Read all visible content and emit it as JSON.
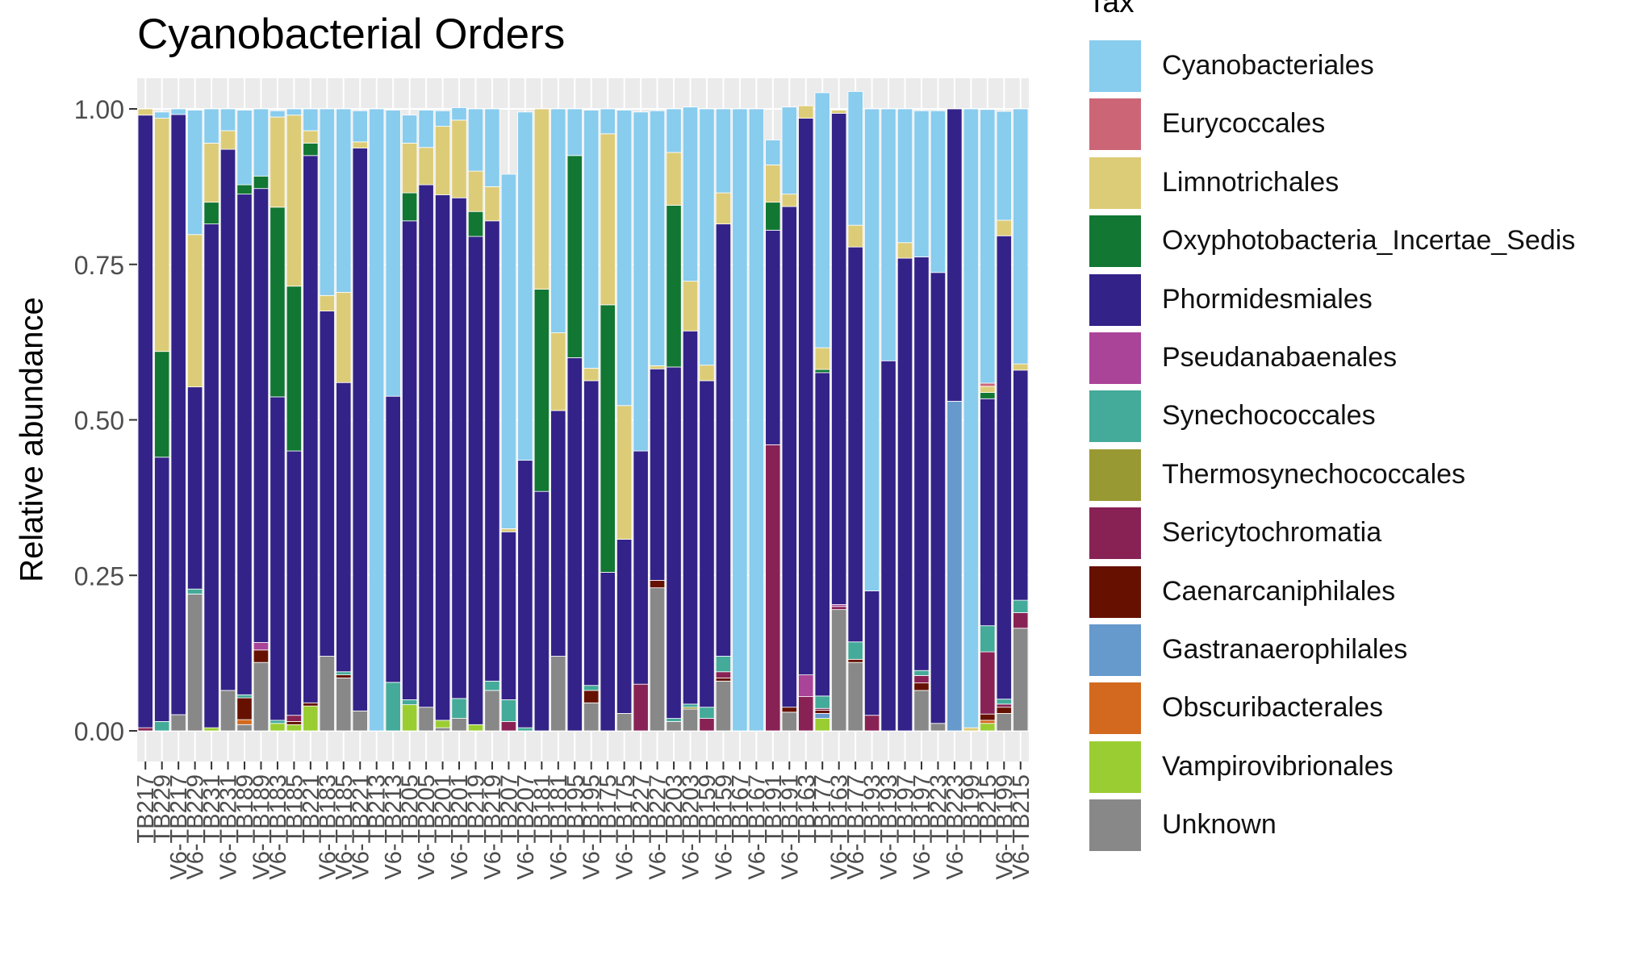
{
  "chart_data": {
    "type": "bar",
    "stacked": true,
    "title": "Cyanobacterial Orders",
    "xlabel": "",
    "ylabel": "Relative abundance",
    "ylim": [
      0,
      1
    ],
    "y_ticks": [
      "0.00",
      "0.25",
      "0.50",
      "0.75",
      "1.00"
    ],
    "legend": {
      "title": "Tax",
      "position": "right"
    },
    "grid": true,
    "categories": [
      "TB217",
      "TB229",
      "V6-TB217",
      "V6-TB229",
      "TB231",
      "V6-TB231",
      "TB189",
      "V6-TB189",
      "V6-TB183",
      "TB185",
      "TB221",
      "V6-TB183",
      "V6-TB185",
      "V6-TB221",
      "TB213",
      "V6-TB213",
      "TB205",
      "V6-TB205",
      "TB201",
      "V6-TB201",
      "TB219",
      "V6-TB219",
      "TB207",
      "V6-TB207",
      "TB181",
      "V6-TB181",
      "TB195",
      "V6-TB195",
      "TB175",
      "V6-TB175",
      "TB227",
      "V6-TB227",
      "TB203",
      "V6-TB203",
      "TB159",
      "V6-TB159",
      "TB167",
      "V6-TB167",
      "TB191",
      "V6-TB191",
      "TB163",
      "TB177",
      "V6-TB163",
      "V6-TB177",
      "TB193",
      "V6-TB193",
      "TB197",
      "V6-TB197",
      "TB223",
      "V6-TB223",
      "TB199",
      "TB215",
      "V6-TB199",
      "V6-TB215"
    ],
    "series": [
      {
        "name": "Unknown",
        "color": "#888888",
        "values": [
          0,
          0,
          0.026,
          0.22,
          0,
          0.065,
          0.01,
          0.11,
          0,
          0,
          0,
          0.12,
          0.085,
          0.032,
          0,
          0,
          0,
          0.038,
          0.005,
          0.02,
          0,
          0.065,
          0,
          0,
          0,
          0.12,
          0,
          0.045,
          0,
          0.028,
          0,
          0.23,
          0.015,
          0.035,
          0,
          0.08,
          0,
          0,
          0,
          0.03,
          0,
          0,
          0.195,
          0.11,
          0,
          0,
          0,
          0.065,
          0.012,
          0,
          0,
          0,
          0.028,
          0.165
        ]
      },
      {
        "name": "Vampirovibrionales",
        "color": "#9ACD32",
        "values": [
          0,
          0,
          0,
          0,
          0.005,
          0,
          0,
          0,
          0.012,
          0.01,
          0.04,
          0,
          0,
          0,
          0,
          0,
          0.042,
          0,
          0.012,
          0,
          0.01,
          0,
          0,
          0,
          0,
          0,
          0,
          0,
          0,
          0,
          0,
          0,
          0,
          0,
          0,
          0,
          0,
          0,
          0,
          0,
          0,
          0.02,
          0,
          0,
          0,
          0,
          0,
          0,
          0,
          0,
          0,
          0.012,
          0,
          0
        ]
      },
      {
        "name": "Obscuribacterales",
        "color": "#D2691E",
        "values": [
          0,
          0,
          0,
          0,
          0,
          0,
          0.008,
          0,
          0,
          0,
          0,
          0,
          0,
          0,
          0,
          0,
          0,
          0,
          0,
          0,
          0,
          0,
          0,
          0,
          0,
          0,
          0,
          0,
          0,
          0,
          0,
          0,
          0,
          0,
          0,
          0,
          0,
          0,
          0,
          0,
          0,
          0,
          0,
          0,
          0,
          0,
          0,
          0,
          0,
          0,
          0,
          0.005,
          0,
          0
        ]
      },
      {
        "name": "Gastranaerophilales",
        "color": "#6699CC",
        "values": [
          0,
          0,
          0,
          0,
          0,
          0,
          0,
          0,
          0,
          0,
          0,
          0,
          0,
          0,
          0,
          0,
          0,
          0,
          0,
          0,
          0,
          0,
          0,
          0,
          0,
          0,
          0,
          0,
          0,
          0,
          0,
          0,
          0,
          0,
          0,
          0,
          0,
          0,
          0,
          0,
          0,
          0.008,
          0,
          0,
          0,
          0,
          0,
          0,
          0,
          0.53,
          0,
          0,
          0,
          0
        ]
      },
      {
        "name": "Caenarcaniphilales",
        "color": "#661100",
        "values": [
          0,
          0,
          0,
          0,
          0,
          0,
          0.035,
          0.02,
          0,
          0.005,
          0.005,
          0,
          0.005,
          0,
          0,
          0,
          0,
          0,
          0,
          0,
          0,
          0,
          0,
          0,
          0,
          0,
          0,
          0.02,
          0,
          0,
          0,
          0.012,
          0,
          0,
          0,
          0.005,
          0,
          0,
          0,
          0.008,
          0,
          0.005,
          0,
          0.005,
          0,
          0,
          0,
          0.012,
          0,
          0,
          0,
          0.01,
          0.01,
          0
        ]
      },
      {
        "name": "Sericytochromatia",
        "color": "#882255",
        "values": [
          0.005,
          0,
          0,
          0,
          0,
          0,
          0,
          0,
          0,
          0.01,
          0,
          0,
          0,
          0,
          0,
          0,
          0,
          0,
          0,
          0,
          0,
          0,
          0.015,
          0,
          0,
          0,
          0,
          0,
          0,
          0,
          0.075,
          0,
          0,
          0,
          0.02,
          0.01,
          0,
          0,
          0.46,
          0,
          0.055,
          0.003,
          0.005,
          0,
          0.025,
          0,
          0,
          0.012,
          0,
          0,
          0,
          0.1,
          0.005,
          0.025
        ]
      },
      {
        "name": "Thermosynechococcales",
        "color": "#999933",
        "values": [
          0,
          0,
          0,
          0,
          0,
          0,
          0,
          0,
          0,
          0,
          0,
          0,
          0,
          0,
          0,
          0,
          0,
          0,
          0,
          0,
          0,
          0,
          0,
          0,
          0,
          0,
          0,
          0,
          0,
          0,
          0,
          0,
          0,
          0.003,
          0,
          0,
          0,
          0,
          0,
          0,
          0,
          0,
          0,
          0,
          0,
          0,
          0,
          0,
          0,
          0,
          0,
          0,
          0,
          0
        ]
      },
      {
        "name": "Synechococcales",
        "color": "#44AA99",
        "values": [
          0,
          0.015,
          0,
          0.008,
          0,
          0,
          0.005,
          0,
          0.005,
          0,
          0,
          0,
          0.005,
          0,
          0,
          0.078,
          0.008,
          0,
          0,
          0.032,
          0,
          0.015,
          0.035,
          0.005,
          0,
          0,
          0,
          0.008,
          0,
          0,
          0,
          0,
          0.005,
          0.005,
          0.018,
          0.025,
          0,
          0,
          0,
          0,
          0,
          0.02,
          0,
          0.028,
          0,
          0,
          0,
          0.008,
          0,
          0,
          0,
          0.042,
          0.008,
          0.02
        ]
      },
      {
        "name": "Pseudanabaenales",
        "color": "#AA4499",
        "values": [
          0,
          0,
          0,
          0,
          0,
          0,
          0,
          0.012,
          0,
          0,
          0,
          0,
          0,
          0,
          0,
          0,
          0,
          0,
          0,
          0,
          0,
          0,
          0,
          0,
          0,
          0,
          0,
          0,
          0,
          0,
          0,
          0,
          0,
          0,
          0,
          0,
          0,
          0,
          0,
          0,
          0.035,
          0,
          0.003,
          0,
          0,
          0,
          0,
          0,
          0,
          0,
          0,
          0,
          0,
          0
        ]
      },
      {
        "name": "Phormidesmiales",
        "color": "#332288",
        "values": [
          0.985,
          0.425,
          0.965,
          0.325,
          0.81,
          0.87,
          0.805,
          0.73,
          0.52,
          0.425,
          0.88,
          0.555,
          0.465,
          0.905,
          0,
          0.46,
          0.77,
          0.84,
          0.845,
          0.805,
          0.785,
          0.74,
          0.27,
          0.43,
          0.385,
          0.395,
          0.6,
          0.49,
          0.255,
          0.28,
          0.375,
          0.34,
          0.565,
          0.6,
          0.525,
          0.695,
          0,
          0,
          0.345,
          0.805,
          0.895,
          0.52,
          0.79,
          0.635,
          0.2,
          0.595,
          0.76,
          0.665,
          0.725,
          0.47,
          0,
          0.365,
          0.745,
          0.37
        ]
      },
      {
        "name": "Oxyphotobacteria_Incertae_Sedis",
        "color": "#117733",
        "values": [
          0,
          0.17,
          0,
          0,
          0.035,
          0,
          0.015,
          0.02,
          0.305,
          0.265,
          0.02,
          0,
          0,
          0,
          0,
          0,
          0.045,
          0,
          0,
          0,
          0.04,
          0,
          0,
          0,
          0.325,
          0,
          0.325,
          0,
          0.43,
          0,
          0,
          0,
          0.26,
          0,
          0,
          0,
          0,
          0,
          0.045,
          0,
          0,
          0.005,
          0,
          0,
          0,
          0,
          0,
          0,
          0,
          0,
          0,
          0.01,
          0,
          0
        ]
      },
      {
        "name": "Limnotrichales",
        "color": "#DDCC77",
        "values": [
          0.01,
          0.375,
          0,
          0.245,
          0.095,
          0.03,
          0,
          0,
          0.145,
          0.275,
          0.02,
          0.025,
          0.145,
          0.01,
          0,
          0,
          0.08,
          0.06,
          0.11,
          0.125,
          0.065,
          0.055,
          0.005,
          0,
          0.29,
          0.125,
          0,
          0.02,
          0.275,
          0.215,
          0,
          0.005,
          0.085,
          0.08,
          0.025,
          0.05,
          0,
          0,
          0.06,
          0.02,
          0.02,
          0.035,
          0.005,
          0.035,
          0,
          0,
          0.025,
          0,
          0,
          0,
          0.005,
          0.01,
          0.025,
          0.01
        ]
      },
      {
        "name": "Eurycoccales",
        "color": "#CC6677",
        "values": [
          0,
          0,
          0,
          0,
          0,
          0,
          0,
          0,
          0,
          0,
          0,
          0,
          0,
          0,
          0,
          0,
          0,
          0,
          0,
          0,
          0,
          0,
          0,
          0,
          0,
          0,
          0,
          0,
          0,
          0,
          0,
          0,
          0,
          0,
          0,
          0,
          0,
          0,
          0,
          0,
          0,
          0,
          0,
          0,
          0,
          0,
          0,
          0,
          0,
          0,
          0,
          0.005,
          0,
          0
        ]
      },
      {
        "name": "Cyanobacteriales",
        "color": "#88CCEE",
        "values": [
          0,
          0.01,
          0.009,
          0.2,
          0.055,
          0.035,
          0.12,
          0.108,
          0.01,
          0.01,
          0.035,
          0.3,
          0.295,
          0.05,
          1,
          0.46,
          0.045,
          0.06,
          0.025,
          0.02,
          0.1,
          0.125,
          0.57,
          0.56,
          0,
          0.36,
          0.075,
          0.415,
          0.04,
          0.475,
          0.545,
          0.41,
          0.07,
          0.28,
          0.412,
          0.135,
          1,
          1,
          0.04,
          0.14,
          0,
          0.41,
          0,
          0.215,
          0.775,
          0.405,
          0.215,
          0.235,
          0.26,
          0,
          0.995,
          0.44,
          0.175,
          0.41
        ]
      }
    ]
  }
}
